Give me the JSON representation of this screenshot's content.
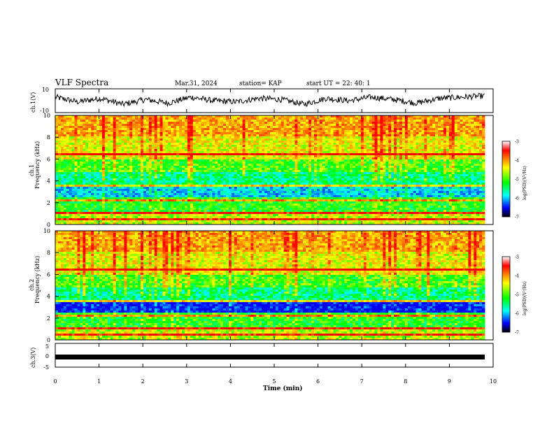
{
  "header": {
    "title": "VLF Spectra",
    "date": "Mar.31, 2024",
    "station": "station= KAP",
    "start": "start  UT  =   22: 40: 1"
  },
  "colors": {
    "background": "#ffffff",
    "axes": "#000000",
    "trace": "#000000"
  },
  "chart_data": [
    {
      "type": "line",
      "panel": "ch1-waveform",
      "ylabel": "ch.1(V)",
      "ylim": [
        -10,
        10
      ],
      "yticks": [
        10,
        -10
      ],
      "xlim": [
        0,
        10
      ],
      "trace_range_min": [
        0,
        9.8
      ],
      "series": [
        {
          "values_approx": [
            3,
            -1,
            2,
            -3,
            1,
            -2,
            3,
            0,
            -1,
            2,
            1,
            -3,
            2,
            0,
            3,
            1,
            -2,
            2,
            3,
            4
          ]
        }
      ]
    },
    {
      "type": "heatmap",
      "panel": "ch1-spectrogram",
      "ylabel": "ch.1\nFrequency (kHz)",
      "ylim": [
        0,
        10
      ],
      "yticks": [
        0,
        2,
        4,
        6,
        8,
        10
      ],
      "xlim": [
        0,
        10
      ],
      "colorbar": {
        "label": "log(PSD)(V²/Hz)",
        "range": [
          -7,
          -3
        ],
        "ticks": [
          -3,
          -4,
          -5,
          -6,
          -7
        ]
      }
    },
    {
      "type": "heatmap",
      "panel": "ch2-spectrogram",
      "ylabel": "ch.2\nFrequency (kHz)",
      "ylim": [
        0,
        10
      ],
      "yticks": [
        0,
        2,
        4,
        6,
        8,
        10
      ],
      "xlim": [
        0,
        10
      ],
      "colorbar": {
        "label": "log(PSD)(V²/Hz)",
        "range": [
          -7,
          -3
        ],
        "ticks": [
          -3,
          -4,
          -5,
          -6,
          -7
        ]
      }
    },
    {
      "type": "line",
      "panel": "ch3-waveform",
      "ylabel": "ch.3(V)",
      "ylim": [
        -5,
        5
      ],
      "yticks": [
        5,
        0,
        -5
      ],
      "xlim": [
        0,
        10
      ],
      "series": [
        {
          "values_approx": [
            -2,
            -2
          ]
        }
      ]
    }
  ],
  "xaxis": {
    "label": "Time  (min)",
    "ticks": [
      "0",
      "1",
      "2",
      "3",
      "4",
      "5",
      "6",
      "7",
      "8",
      "9",
      "10"
    ]
  }
}
